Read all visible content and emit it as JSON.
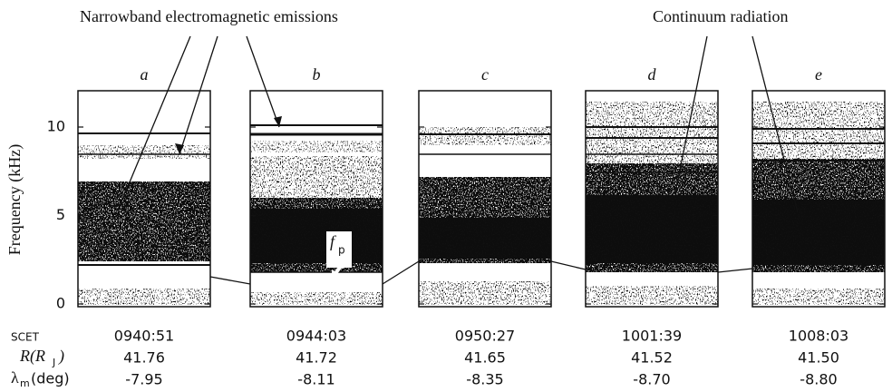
{
  "annotations": {
    "narrowband": "Narrowband electromagnetic emissions",
    "continuum": "Continuum radiation",
    "fp_main": "f",
    "fp_sub": "p"
  },
  "y_axis": {
    "label": "Frequency (kHz)",
    "ticks": [
      0,
      5,
      10
    ]
  },
  "row_labels": {
    "scet": "SCET",
    "r_main": "R(R",
    "r_sub": "J",
    "r_close": ")",
    "lambda_main": "λ",
    "lambda_sub": "m",
    "lambda_unit": "(deg)"
  },
  "panels": [
    {
      "label": "a",
      "scet": "0940:51",
      "r": "41.76",
      "lambda": "-7.95"
    },
    {
      "label": "b",
      "scet": "0944:03",
      "r": "41.72",
      "lambda": "-8.11"
    },
    {
      "label": "c",
      "scet": "0950:27",
      "r": "41.65",
      "lambda": "-8.35"
    },
    {
      "label": "d",
      "scet": "1001:39",
      "r": "41.52",
      "lambda": "-8.70"
    },
    {
      "label": "e",
      "scet": "1008:03",
      "r": "41.50",
      "lambda": "-8.80"
    }
  ]
}
